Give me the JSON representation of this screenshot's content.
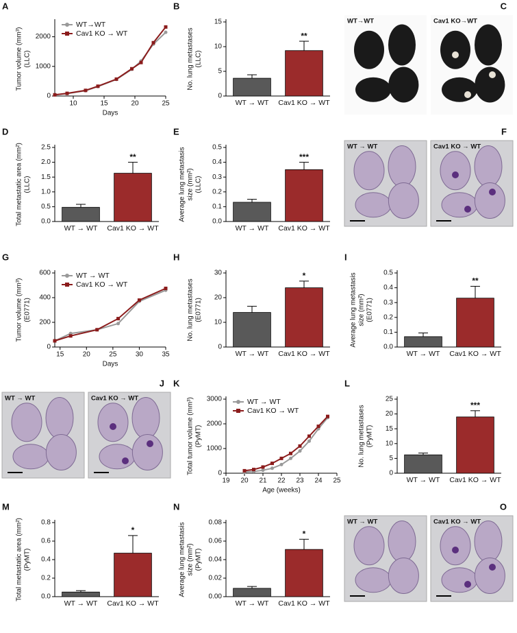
{
  "chart_data": [
    {
      "panel": "A",
      "type": "line",
      "ylabel": [
        "Tumor volume (mm³)",
        "(LLC)"
      ],
      "xlabel": "Days",
      "x": [
        7,
        9,
        12,
        14,
        17,
        19.5,
        21,
        23,
        25
      ],
      "xlim": [
        7,
        25
      ],
      "xticks": [
        10,
        15,
        20,
        25
      ],
      "ylim": [
        0,
        2500
      ],
      "yticks": [
        0,
        1000,
        2000
      ],
      "series": [
        {
          "name": "WT→WT",
          "color": "#999999",
          "values": [
            40,
            80,
            180,
            320,
            560,
            900,
            1180,
            1750,
            2150
          ]
        },
        {
          "name": "Cav1 KO → WT",
          "color": "#8b1c1c",
          "values": [
            40,
            90,
            190,
            330,
            570,
            920,
            1130,
            1800,
            2330
          ]
        }
      ]
    },
    {
      "panel": "B",
      "type": "bar",
      "ylabel": [
        "No. lung metastases",
        "(LLC)"
      ],
      "categories": [
        "WT → WT",
        "Cav1 KO → WT"
      ],
      "values": [
        3.6,
        9.2
      ],
      "errors": [
        0.7,
        1.9
      ],
      "colors": [
        "#595959",
        "#9b2b2b"
      ],
      "ylim": [
        0,
        15
      ],
      "yticks": [
        0,
        5,
        10,
        15
      ],
      "significance": "**"
    },
    {
      "panel": "D",
      "type": "bar",
      "ylabel": [
        "Total metastatic area (mm²)",
        "(LLC)"
      ],
      "categories": [
        "WT → WT",
        "Cav1 KO → WT"
      ],
      "values": [
        0.48,
        1.63
      ],
      "errors": [
        0.1,
        0.37
      ],
      "colors": [
        "#595959",
        "#9b2b2b"
      ],
      "ylim": [
        0,
        2.5
      ],
      "yticks": [
        {
          "value": 0,
          "label": "0.0"
        },
        0.5,
        {
          "value": 1,
          "label": "1.0"
        },
        1.5,
        {
          "value": 2,
          "label": "2.0"
        },
        2.5
      ],
      "significance": "**"
    },
    {
      "panel": "E",
      "type": "bar",
      "ylabel": [
        "Average lung metastasis",
        "size (mm²)",
        "(LLC)"
      ],
      "categories": [
        "WT → WT",
        "Cav1 KO → WT"
      ],
      "values": [
        0.13,
        0.35
      ],
      "errors": [
        0.02,
        0.05
      ],
      "colors": [
        "#595959",
        "#9b2b2b"
      ],
      "ylim": [
        0,
        0.5
      ],
      "yticks": [
        {
          "value": 0,
          "label": "0.0"
        },
        0.1,
        0.2,
        0.3,
        0.4,
        0.5
      ],
      "significance": "***"
    },
    {
      "panel": "G",
      "type": "line",
      "ylabel": [
        "Tumor volume (mm³)",
        "(E0771)"
      ],
      "xlabel": "Days",
      "x": [
        14,
        17,
        22,
        26,
        30,
        35
      ],
      "xlim": [
        14,
        35
      ],
      "xticks": [
        15,
        20,
        25,
        30,
        35
      ],
      "ylim": [
        0,
        600
      ],
      "yticks": [
        0,
        200,
        400,
        600
      ],
      "series": [
        {
          "name": "WT → WT",
          "color": "#999999",
          "values": [
            50,
            110,
            140,
            190,
            370,
            460
          ]
        },
        {
          "name": "Cav1 KO → WT",
          "color": "#8b1c1c",
          "values": [
            50,
            90,
            140,
            230,
            380,
            475
          ]
        }
      ]
    },
    {
      "panel": "H",
      "type": "bar",
      "ylabel": [
        "No. lung metastases",
        "(E0771)"
      ],
      "categories": [
        "WT → WT",
        "Cav1 KO → WT"
      ],
      "values": [
        14,
        24
      ],
      "errors": [
        2.5,
        2.7
      ],
      "colors": [
        "#595959",
        "#9b2b2b"
      ],
      "ylim": [
        0,
        30
      ],
      "yticks": [
        0,
        10,
        20,
        30
      ],
      "significance": "*"
    },
    {
      "panel": "I",
      "type": "bar",
      "ylabel": [
        "Average lung metastasis",
        "size (mm²)",
        "(E0771)"
      ],
      "categories": [
        "WT → WT",
        "Cav1 KO → WT"
      ],
      "values": [
        0.07,
        0.33
      ],
      "errors": [
        0.025,
        0.08
      ],
      "colors": [
        "#595959",
        "#9b2b2b"
      ],
      "ylim": [
        0,
        0.5
      ],
      "yticks": [
        {
          "value": 0,
          "label": "0.0"
        },
        0.1,
        0.2,
        0.3,
        0.4,
        0.5
      ],
      "significance": "**"
    },
    {
      "panel": "K",
      "type": "line",
      "ylabel": [
        "Total tumor volume (mm³)",
        "(PyMT)"
      ],
      "xlabel": "Age (weeks)",
      "x": [
        20,
        20.5,
        21,
        21.5,
        22,
        22.5,
        23,
        23.5,
        24,
        24.5
      ],
      "xlim": [
        19,
        25
      ],
      "xticks": [
        19,
        20,
        21,
        22,
        23,
        24,
        25
      ],
      "ylim": [
        0,
        3000
      ],
      "yticks": [
        0,
        1000,
        2000,
        3000
      ],
      "series": [
        {
          "name": "WT → WT",
          "color": "#999999",
          "values": [
            50,
            70,
            120,
            200,
            350,
            600,
            900,
            1300,
            1800,
            2250
          ]
        },
        {
          "name": "Cav1 KO → WT",
          "color": "#8b1c1c",
          "values": [
            100,
            150,
            250,
            400,
            600,
            800,
            1100,
            1500,
            1900,
            2300
          ]
        }
      ]
    },
    {
      "panel": "L",
      "type": "bar",
      "ylabel": [
        "No. lung metastases",
        "(PyMT)"
      ],
      "categories": [
        "WT → WT",
        "Cav1 KO → WT"
      ],
      "values": [
        6.2,
        19
      ],
      "errors": [
        0.6,
        2.1
      ],
      "colors": [
        "#595959",
        "#9b2b2b"
      ],
      "ylim": [
        0,
        25
      ],
      "yticks": [
        0,
        5,
        10,
        15,
        20,
        25
      ],
      "significance": "***"
    },
    {
      "panel": "M",
      "type": "bar",
      "ylabel": [
        "Total metastatic area (mm²)",
        "(PyMT)"
      ],
      "categories": [
        "WT → WT",
        "Cav1 KO → WT"
      ],
      "values": [
        0.05,
        0.47
      ],
      "errors": [
        0.015,
        0.19
      ],
      "colors": [
        "#595959",
        "#9b2b2b"
      ],
      "ylim": [
        0,
        0.8
      ],
      "yticks": [
        {
          "value": 0,
          "label": "0.0"
        },
        0.2,
        0.4,
        0.6,
        0.8
      ],
      "significance": "*"
    },
    {
      "panel": "N",
      "type": "bar",
      "ylabel": [
        "Average lung metastasis",
        "size (mm²)",
        "(PyMT)"
      ],
      "categories": [
        "WT → WT",
        "Cav1 KO → WT"
      ],
      "values": [
        0.009,
        0.051
      ],
      "errors": [
        0.002,
        0.011
      ],
      "colors": [
        "#595959",
        "#9b2b2b"
      ],
      "ylim": [
        0,
        0.08
      ],
      "yticks": [
        {
          "value": 0,
          "label": "0.00"
        },
        0.02,
        0.04,
        0.06,
        0.08
      ],
      "significance": "*"
    }
  ],
  "images": [
    {
      "panel": "C",
      "style": "photo",
      "labels": [
        "WT→WT",
        "Cav1 KO→WT"
      ]
    },
    {
      "panel": "F",
      "style": "histology",
      "labels": [
        "WT → WT",
        "Cav1 KO → WT"
      ]
    },
    {
      "panel": "J",
      "style": "histology",
      "labels": [
        "WT → WT",
        "Cav1 KO → WT"
      ]
    },
    {
      "panel": "O",
      "style": "histology",
      "labels": [
        "WT → WT",
        "Cav1 KO → WT"
      ]
    }
  ]
}
